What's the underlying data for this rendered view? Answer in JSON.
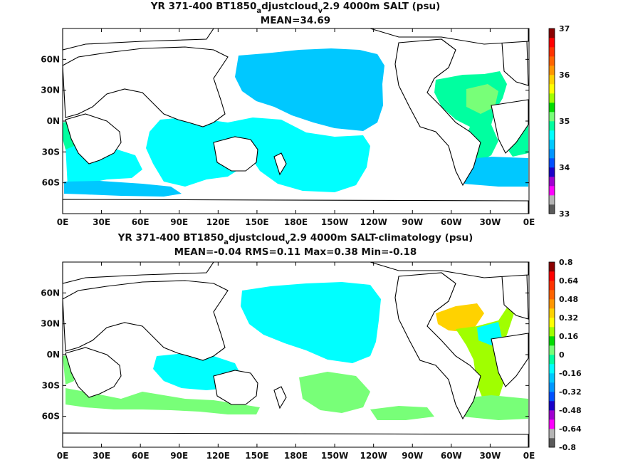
{
  "chart_data": [
    {
      "type": "heatmap",
      "title_parts": [
        "YR 371-400 BT1850",
        "a",
        "djustcloud",
        "v",
        "2.9 4000m SALT (psu)"
      ],
      "subtitle": "MEAN=34.69",
      "x_ticks": [
        "0E",
        "30E",
        "60E",
        "90E",
        "120E",
        "150E",
        "180E",
        "150W",
        "120W",
        "90W",
        "60W",
        "30W",
        "0E"
      ],
      "y_ticks": [
        "60N",
        "30N",
        "0N",
        "30S",
        "60S"
      ],
      "colorbar": {
        "labels": [
          "37",
          "36",
          "35",
          "34",
          "33"
        ],
        "range": [
          33,
          37
        ],
        "colors": [
          "#5a5a5a",
          "#b4b4b4",
          "#ff00ff",
          "#a000d0",
          "#1a00c8",
          "#0050ff",
          "#0096ff",
          "#00c8ff",
          "#00ffff",
          "#00ffa0",
          "#78ff78",
          "#00dc00",
          "#a0ff00",
          "#ffff00",
          "#ffd200",
          "#ff9600",
          "#ff6400",
          "#ff3200",
          "#ff0000",
          "#8b0000"
        ]
      },
      "regions": [
        {
          "name": "north-pacific",
          "color": "#00c8ff"
        },
        {
          "name": "south-indian-pacific",
          "color": "#00ffff"
        },
        {
          "name": "atlantic",
          "color": "#00ffa0"
        },
        {
          "name": "north-atlantic-core",
          "color": "#78ff78"
        }
      ]
    },
    {
      "type": "heatmap",
      "title_parts": [
        "YR 371-400 BT1850",
        "a",
        "djustcloud",
        "v",
        "2.9 4000m SALT-climatology (psu)"
      ],
      "subtitle": "MEAN=-0.04   RMS=0.11   Max=0.38   Min=-0.18",
      "x_ticks": [
        "0E",
        "30E",
        "60E",
        "90E",
        "120E",
        "150E",
        "180E",
        "150W",
        "120W",
        "90W",
        "60W",
        "30W",
        "0E"
      ],
      "y_ticks": [
        "60N",
        "30N",
        "0N",
        "30S",
        "60S"
      ],
      "colorbar": {
        "labels": [
          "0.8",
          "0.64",
          "0.48",
          "0.32",
          "0.16",
          "0",
          "-0.16",
          "-0.32",
          "-0.48",
          "-0.64",
          "-0.8"
        ],
        "range": [
          -0.8,
          0.8
        ],
        "colors": [
          "#5a5a5a",
          "#b4b4b4",
          "#ff00ff",
          "#a000d0",
          "#1a00c8",
          "#0050ff",
          "#0096ff",
          "#00c8ff",
          "#00ffff",
          "#00ffa0",
          "#78ff78",
          "#00dc00",
          "#a0ff00",
          "#ffff00",
          "#ffd200",
          "#ff9600",
          "#ff6400",
          "#ff3200",
          "#ff0000",
          "#8b0000"
        ]
      },
      "regions": [
        {
          "name": "pacific-negative",
          "color": "#00ffff"
        },
        {
          "name": "south-positive",
          "color": "#78ff78"
        },
        {
          "name": "north-atlantic-positive",
          "color": "#ffd200"
        },
        {
          "name": "atlantic-positive",
          "color": "#a0ff00"
        }
      ]
    }
  ]
}
